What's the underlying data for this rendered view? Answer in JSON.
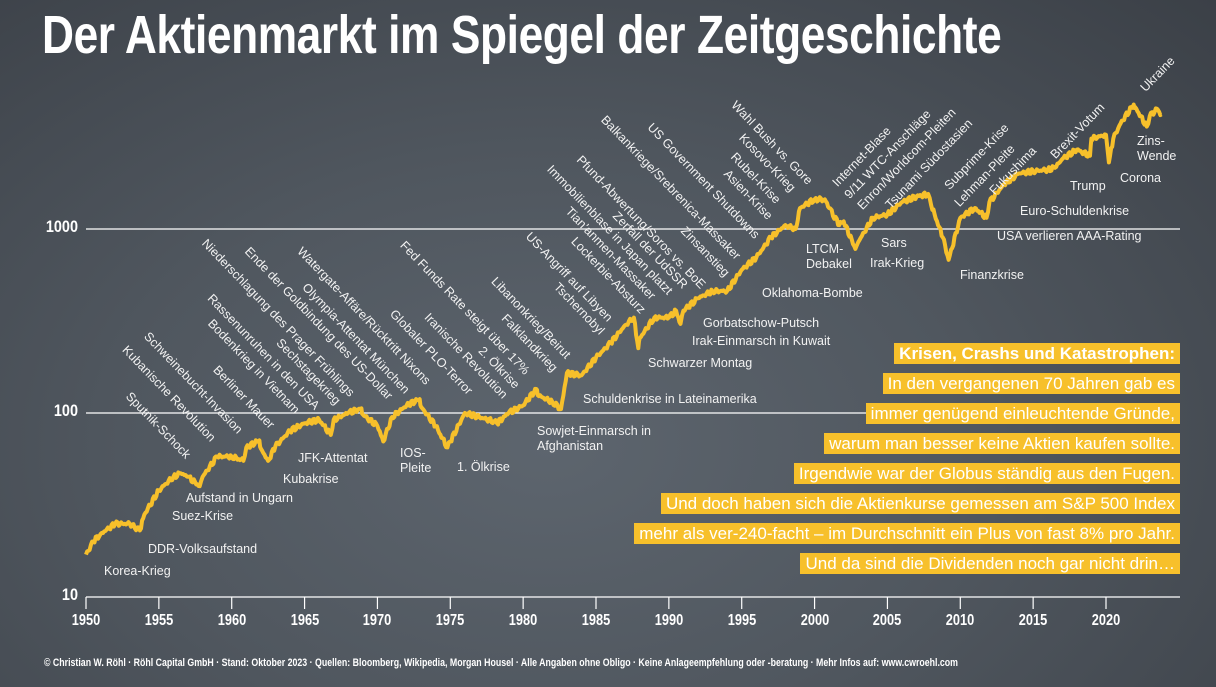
{
  "title": "Der Aktienmarkt im Spiegel der Zeitgeschichte",
  "chart_data": {
    "type": "line",
    "title": "Der Aktienmarkt im Spiegel der Zeitgeschichte",
    "y_scale": "log",
    "ylim": [
      10,
      5000
    ],
    "xlim": [
      1950,
      2025
    ],
    "grid": "horizontal lines at 100 and 1000",
    "y_ticks": [
      "10",
      "100",
      "1000"
    ],
    "x_ticks": [
      "1950",
      "1955",
      "1960",
      "1965",
      "1970",
      "1975",
      "1980",
      "1985",
      "1990",
      "1995",
      "2000",
      "2005",
      "2010",
      "2015",
      "2020"
    ],
    "line_color": "#f7c02b",
    "x": [
      1950,
      1950.5,
      1951,
      1952,
      1953,
      1953.7,
      1954,
      1955,
      1956,
      1956.5,
      1957,
      1957.8,
      1958,
      1959,
      1960,
      1960.8,
      1961,
      1961.9,
      1962,
      1962.5,
      1963,
      1964,
      1965,
      1966,
      1966.8,
      1967,
      1968,
      1968.9,
      1969,
      1970,
      1970.4,
      1971,
      1972,
      1972.9,
      1973,
      1974,
      1974.8,
      1975,
      1976,
      1977,
      1978,
      1978.2,
      1979,
      1980,
      1980.9,
      1981,
      1982,
      1982.6,
      1983,
      1984,
      1985,
      1986,
      1987,
      1987.6,
      1987.9,
      1988,
      1989,
      1990,
      1990.5,
      1990.8,
      1991,
      1992,
      1993,
      1994,
      1995,
      1996,
      1997,
      1998,
      1998.7,
      1999,
      2000,
      2000.7,
      2001,
      2001.7,
      2002,
      2002.8,
      2003,
      2004,
      2005,
      2006,
      2007,
      2007.8,
      2008,
      2008.8,
      2009.2,
      2010,
      2011,
      2011.8,
      2012,
      2013,
      2014,
      2015,
      2016,
      2016.5,
      2017,
      2018,
      2018.9,
      2019,
      2020,
      2020.2,
      2020.5,
      2021,
      2021.9,
      2022,
      2022.8,
      2023,
      2023.5,
      2023.8
    ],
    "y": [
      17,
      20,
      22,
      25,
      25,
      23,
      28,
      38,
      45,
      47,
      45,
      40,
      45,
      58,
      58,
      55,
      65,
      71,
      64,
      55,
      66,
      80,
      88,
      92,
      76,
      92,
      100,
      106,
      98,
      85,
      70,
      95,
      110,
      119,
      108,
      85,
      65,
      70,
      100,
      95,
      90,
      88,
      100,
      110,
      135,
      125,
      115,
      105,
      165,
      160,
      200,
      240,
      300,
      330,
      225,
      255,
      330,
      330,
      360,
      305,
      360,
      420,
      460,
      460,
      600,
      700,
      900,
      1050,
      1000,
      1300,
      1450,
      1450,
      1300,
      1050,
      1100,
      780,
      850,
      1150,
      1200,
      1400,
      1500,
      1550,
      1350,
      900,
      680,
      1150,
      1300,
      1150,
      1400,
      1750,
      2000,
      2060,
      2100,
      2150,
      2400,
      2700,
      2500,
      3100,
      3250,
      2300,
      3100,
      3750,
      4750,
      4600,
      3600,
      4100,
      4500,
      4200
    ]
  },
  "annotations_rising": [
    "Sputnik-Schock",
    "Kubanische Revolution",
    "Schweinebucht-Invasion",
    "Berliner Mauer",
    "Bodenkrieg in Vietnam",
    "Rassenunruhen in den USA",
    "Sechstagekrieg",
    "Niederschlagung des Prager Frühlings",
    "Ende der Goldbindung des US-Dollar",
    "Olympia-Attentat München",
    "Watergate-Affäre/Rücktritt Nixons",
    "Globaler PLO-Terror",
    "Iranische Revolution",
    "2. Ölkrise",
    "Fed Funds Rate steigt über 17%",
    "Falklandkrieg",
    "Libanonkrieg/Beirut",
    "Tschernobyl",
    "US-Angriff auf Libyen",
    "Lockerbie-Absturz",
    "Tian’anmen-Massaker",
    "Immobilienblase in Japan platzt",
    "Zerfall der UdSSR",
    "Pfund-Abwertung/Soros vs. BoE",
    "Zinsanstieg",
    "Balkankriege/Srebrenica-Massaker",
    "US Government Shutdowns",
    "Asien-Krise",
    "Rubel-Krise",
    "Kosovo-Krieg",
    "Wahl Bush vs. Gore"
  ],
  "annotations_upright": [
    "Internet-Blase",
    "9/11 WTC-Anschläge",
    "Enron/Worldcom-Pleiten",
    "Tsunami Südostasien",
    "Subprime-Krise",
    "Lehman-Pleite",
    "Fukushima",
    "Brexit-Votum",
    "Ukraine"
  ],
  "annotations_flat": [
    "Aufstand in Ungarn",
    "Suez-Krise",
    "DDR-Volksaufstand",
    "Korea-Krieg",
    "Kubakrise",
    "JFK-Attentat",
    "IOS-\nPleite",
    "1. Ölkrise",
    "Sowjet-Einmarsch in\nAfghanistan",
    "Schuldenkrise in Lateinamerika",
    "Schwarzer Montag",
    "Irak-Einmarsch in Kuwait",
    "Gorbatschow-Putsch",
    "Oklahoma-Bombe",
    "LTCM-\nDebakel",
    "Irak-Krieg",
    "Sars",
    "Finanzkrise",
    "USA verlieren AAA-Rating",
    "Euro-Schuldenkrise",
    "Trump",
    "Corona",
    "Zins-\nWende"
  ],
  "textbox": {
    "heading": "Krisen, Crashs und Katastrophen:",
    "lines": [
      "In den vergangenen 70 Jahren gab es",
      "immer genügend einleuchtende Gründe,",
      "warum man besser keine Aktien kaufen sollte.",
      "Irgendwie war der Globus ständig aus den Fugen.",
      "Und doch haben sich die Aktienkurse gemessen am S&P 500 Index",
      "mehr als ver-240-facht – im Durchschnitt ein Plus von fast 8% pro Jahr.",
      "Und da sind die Dividenden noch gar nicht drin…"
    ],
    "highlight_color": "#f7c02b"
  },
  "footer": "© Christian W. Röhl · Röhl Capital GmbH · Stand: Oktober 2023 · Quellen: Bloomberg, Wikipedia, Morgan Housel · Alle Angaben ohne Obligo · Keine Anlageempfehlung oder -beratung · Mehr Infos auf: www.cwroehl.com"
}
